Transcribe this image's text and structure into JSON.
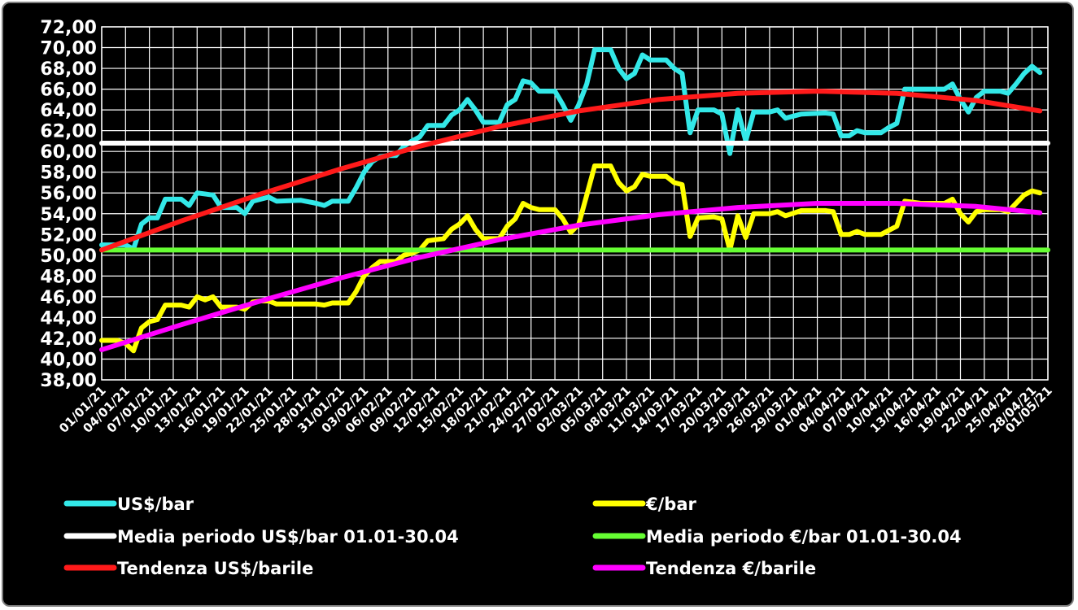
{
  "chart_data": {
    "type": "line",
    "title": "",
    "xlabel": "",
    "ylabel": "",
    "ylim": [
      38,
      72
    ],
    "ystep": 2,
    "grid": true,
    "legend_position": "bottom",
    "colors": {
      "background": "#000000",
      "grid": "#ffffff",
      "text": "#ffffff"
    },
    "x_tick_labels": [
      "01/01/21",
      "04/01/21",
      "07/01/21",
      "10/01/21",
      "13/01/21",
      "16/01/21",
      "19/01/21",
      "22/01/21",
      "25/01/21",
      "28/01/21",
      "31/01/21",
      "03/02/21",
      "06/02/21",
      "09/02/21",
      "12/02/21",
      "15/02/21",
      "18/02/21",
      "21/02/21",
      "24/02/21",
      "27/02/21",
      "02/03/21",
      "05/03/21",
      "08/03/21",
      "11/03/21",
      "14/03/21",
      "17/03/21",
      "20/03/21",
      "23/03/21",
      "26/03/21",
      "29/03/21",
      "01/04/21",
      "04/04/21",
      "07/04/21",
      "10/04/21",
      "13/04/21",
      "16/04/21",
      "19/04/21",
      "22/04/21",
      "25/04/21",
      "28/04/21",
      "01/05/21"
    ],
    "y_tick_labels": [
      "38,00",
      "40,00",
      "42,00",
      "44,00",
      "46,00",
      "48,00",
      "50,00",
      "52,00",
      "54,00",
      "56,00",
      "58,00",
      "60,00",
      "62,00",
      "64,00",
      "66,00",
      "68,00",
      "70,00",
      "72,00"
    ],
    "series": [
      {
        "name": "US$/bar",
        "color": "#33e8e8",
        "values": [
          [
            0,
            51
          ],
          [
            3,
            51
          ],
          [
            4,
            50.6
          ],
          [
            5,
            53
          ],
          [
            6,
            53.6
          ],
          [
            7,
            53.6
          ],
          [
            8,
            55.4
          ],
          [
            10,
            55.4
          ],
          [
            11,
            54.8
          ],
          [
            12,
            56
          ],
          [
            14,
            55.8
          ],
          [
            15,
            54.6
          ],
          [
            17,
            54.6
          ],
          [
            18,
            54
          ],
          [
            19,
            55.2
          ],
          [
            21,
            55.6
          ],
          [
            22,
            55.2
          ],
          [
            25,
            55.3
          ],
          [
            27,
            55
          ],
          [
            28,
            54.8
          ],
          [
            29,
            55.2
          ],
          [
            31,
            55.2
          ],
          [
            32,
            56.5
          ],
          [
            33,
            58
          ],
          [
            34,
            59
          ],
          [
            35,
            59.5
          ],
          [
            36,
            59.6
          ],
          [
            37,
            59.6
          ],
          [
            38,
            60.5
          ],
          [
            39,
            61
          ],
          [
            40,
            61.4
          ],
          [
            41,
            62.5
          ],
          [
            42,
            62.5
          ],
          [
            43,
            62.5
          ],
          [
            44,
            63.5
          ],
          [
            45,
            64
          ],
          [
            46,
            65
          ],
          [
            47,
            64
          ],
          [
            48,
            62.8
          ],
          [
            49,
            62.8
          ],
          [
            50,
            62.8
          ],
          [
            51,
            64.5
          ],
          [
            52,
            65
          ],
          [
            53,
            66.8
          ],
          [
            54,
            66.6
          ],
          [
            55,
            65.8
          ],
          [
            57,
            65.8
          ],
          [
            58,
            64.5
          ],
          [
            59,
            63
          ],
          [
            60,
            64.5
          ],
          [
            61,
            66.5
          ],
          [
            62,
            69.8
          ],
          [
            64,
            69.8
          ],
          [
            65,
            68
          ],
          [
            66,
            67
          ],
          [
            67,
            67.5
          ],
          [
            68,
            69.3
          ],
          [
            69,
            68.8
          ],
          [
            71,
            68.8
          ],
          [
            72,
            68
          ],
          [
            73,
            67.5
          ],
          [
            74,
            61.8
          ],
          [
            75,
            64
          ],
          [
            77,
            64
          ],
          [
            78,
            63.6
          ],
          [
            79,
            59.8
          ],
          [
            80,
            64
          ],
          [
            81,
            61
          ],
          [
            82,
            63.8
          ],
          [
            84,
            63.8
          ],
          [
            85,
            64
          ],
          [
            86,
            63.2
          ],
          [
            88,
            63.6
          ],
          [
            91,
            63.7
          ],
          [
            92,
            63.6
          ],
          [
            93,
            61.5
          ],
          [
            94,
            61.5
          ],
          [
            95,
            62
          ],
          [
            96,
            61.8
          ],
          [
            98,
            61.8
          ],
          [
            99,
            62.3
          ],
          [
            100,
            62.7
          ],
          [
            101,
            66
          ],
          [
            103,
            66
          ],
          [
            106,
            66
          ],
          [
            107,
            66.5
          ],
          [
            108,
            65
          ],
          [
            109,
            63.8
          ],
          [
            110,
            65.2
          ],
          [
            111,
            65.8
          ],
          [
            113,
            65.8
          ],
          [
            114,
            65.6
          ],
          [
            115,
            66.5
          ],
          [
            116,
            67.5
          ],
          [
            117,
            68.2
          ],
          [
            118,
            67.6
          ]
        ]
      },
      {
        "name": "€/bar",
        "color": "#ffff00",
        "values": [
          [
            0,
            41.8
          ],
          [
            2,
            41.8
          ],
          [
            3,
            41.5
          ],
          [
            4,
            40.8
          ],
          [
            5,
            43
          ],
          [
            6,
            43.6
          ],
          [
            7,
            43.8
          ],
          [
            8,
            45.2
          ],
          [
            10,
            45.2
          ],
          [
            11,
            45
          ],
          [
            12,
            46
          ],
          [
            13,
            45.7
          ],
          [
            14,
            46
          ],
          [
            15,
            45
          ],
          [
            17,
            45
          ],
          [
            18,
            44.8
          ],
          [
            19,
            45.5
          ],
          [
            20,
            45.6
          ],
          [
            21,
            45.6
          ],
          [
            22,
            45.3
          ],
          [
            25,
            45.3
          ],
          [
            27,
            45.3
          ],
          [
            28,
            45.2
          ],
          [
            29,
            45.4
          ],
          [
            31,
            45.4
          ],
          [
            32,
            46.5
          ],
          [
            33,
            48
          ],
          [
            34,
            48.8
          ],
          [
            35,
            49.4
          ],
          [
            37,
            49.4
          ],
          [
            38,
            50
          ],
          [
            39,
            50.2
          ],
          [
            40,
            50.5
          ],
          [
            41,
            51.4
          ],
          [
            42,
            51.5
          ],
          [
            43,
            51.6
          ],
          [
            44,
            52.5
          ],
          [
            45,
            53
          ],
          [
            46,
            53.8
          ],
          [
            47,
            52.5
          ],
          [
            48,
            51.6
          ],
          [
            50,
            51.6
          ],
          [
            51,
            52.8
          ],
          [
            52,
            53.5
          ],
          [
            53,
            55
          ],
          [
            54,
            54.6
          ],
          [
            55,
            54.4
          ],
          [
            57,
            54.4
          ],
          [
            58,
            53.5
          ],
          [
            59,
            52.2
          ],
          [
            60,
            53
          ],
          [
            61,
            55.8
          ],
          [
            62,
            58.6
          ],
          [
            64,
            58.6
          ],
          [
            65,
            57
          ],
          [
            66,
            56.2
          ],
          [
            67,
            56.6
          ],
          [
            68,
            57.8
          ],
          [
            69,
            57.6
          ],
          [
            71,
            57.6
          ],
          [
            72,
            57
          ],
          [
            73,
            56.8
          ],
          [
            74,
            51.8
          ],
          [
            75,
            53.6
          ],
          [
            77,
            53.7
          ],
          [
            78,
            53.5
          ],
          [
            79,
            50.5
          ],
          [
            80,
            53.8
          ],
          [
            81,
            51.7
          ],
          [
            82,
            54
          ],
          [
            84,
            54
          ],
          [
            85,
            54.2
          ],
          [
            86,
            53.8
          ],
          [
            88,
            54.3
          ],
          [
            91,
            54.3
          ],
          [
            92,
            54.2
          ],
          [
            93,
            52
          ],
          [
            94,
            52
          ],
          [
            95,
            52.3
          ],
          [
            96,
            52
          ],
          [
            98,
            52
          ],
          [
            99,
            52.4
          ],
          [
            100,
            52.8
          ],
          [
            101,
            55.2
          ],
          [
            103,
            55
          ],
          [
            106,
            55
          ],
          [
            107,
            55.4
          ],
          [
            108,
            54
          ],
          [
            109,
            53.2
          ],
          [
            110,
            54.2
          ],
          [
            111,
            54.4
          ],
          [
            113,
            54.4
          ],
          [
            114,
            54.2
          ],
          [
            115,
            55
          ],
          [
            116,
            55.8
          ],
          [
            117,
            56.2
          ],
          [
            118,
            56
          ]
        ]
      },
      {
        "name": "Media periodo US$/bar 01.01-30.04",
        "color": "#ffffff",
        "values": [
          [
            0,
            60.8
          ],
          [
            119,
            60.8
          ]
        ]
      },
      {
        "name": "Media periodo €/bar 01.01-30.04",
        "color": "#66ff33",
        "values": [
          [
            0,
            50.5
          ],
          [
            119,
            50.5
          ]
        ]
      },
      {
        "name": "Tendenza US$/barile",
        "color": "#ff1a1a",
        "values": [
          [
            0,
            50.5
          ],
          [
            10,
            53.3
          ],
          [
            20,
            55.9
          ],
          [
            30,
            58.3
          ],
          [
            40,
            60.5
          ],
          [
            50,
            62.4
          ],
          [
            60,
            63.9
          ],
          [
            70,
            65
          ],
          [
            80,
            65.6
          ],
          [
            90,
            65.8
          ],
          [
            100,
            65.6
          ],
          [
            110,
            64.9
          ],
          [
            118,
            63.9
          ]
        ]
      },
      {
        "name": "Tendenza €/barile",
        "color": "#ff00ff",
        "values": [
          [
            0,
            40.9
          ],
          [
            10,
            43.3
          ],
          [
            20,
            45.6
          ],
          [
            30,
            47.8
          ],
          [
            40,
            49.8
          ],
          [
            50,
            51.5
          ],
          [
            60,
            52.9
          ],
          [
            70,
            53.9
          ],
          [
            80,
            54.6
          ],
          [
            90,
            55
          ],
          [
            100,
            55
          ],
          [
            110,
            54.7
          ],
          [
            118,
            54.1
          ]
        ]
      }
    ]
  }
}
